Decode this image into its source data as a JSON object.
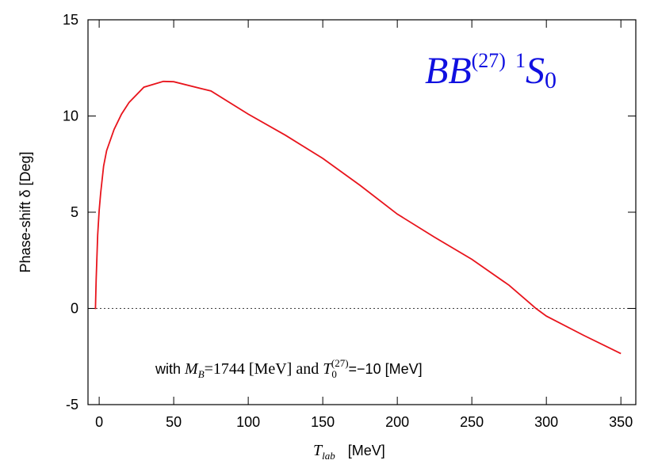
{
  "chart_data": {
    "type": "line",
    "title_parts": [
      "BB",
      "(27)",
      "1",
      "S",
      "0"
    ],
    "annotation_parts": [
      "with ",
      "M",
      "B",
      "=1744 [MeV] and ",
      "T",
      "0",
      "(27)",
      "=−10 [MeV]"
    ],
    "x_label_parts": [
      "T",
      "lab",
      "[MeV]"
    ],
    "y_label": "Phase-shift δ  [Deg]",
    "x": [
      -3,
      -2.5,
      -2,
      -1,
      0,
      1,
      3,
      5,
      10,
      15,
      20,
      30,
      43,
      50,
      75,
      100,
      125,
      150,
      175,
      200,
      225,
      250,
      275,
      293,
      300,
      325,
      350
    ],
    "series": [
      {
        "name": "BB(27) 1S0",
        "color": "#e8141c",
        "values": [
          0,
          0,
          1.5,
          3.8,
          5.1,
          6.0,
          7.4,
          8.2,
          9.3,
          10.1,
          10.7,
          11.5,
          11.8,
          11.78,
          11.3,
          10.1,
          9.0,
          7.8,
          6.4,
          4.9,
          3.7,
          2.55,
          1.2,
          0,
          -0.4,
          -1.4,
          -2.35
        ]
      }
    ],
    "hline": 0,
    "xlim": [
      -7.5,
      360
    ],
    "ylim": [
      -5,
      15
    ],
    "xticks": [
      0,
      50,
      100,
      150,
      200,
      250,
      300,
      350
    ],
    "yticks": [
      -5,
      0,
      5,
      10,
      15
    ]
  }
}
